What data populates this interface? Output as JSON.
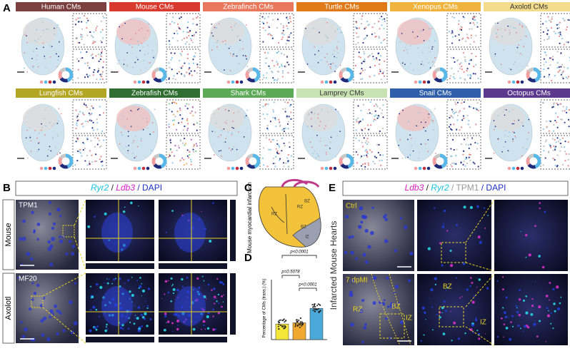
{
  "panels": {
    "A": {
      "label": "A",
      "tiles": [
        {
          "title": "Human CMs",
          "color": "#7b3f3f",
          "text_color": "#ffffff"
        },
        {
          "title": "Mouse CMs",
          "color": "#d93a2e",
          "text_color": "#ffffff"
        },
        {
          "title": "Zebrafinch CMs",
          "color": "#e8775c",
          "text_color": "#ffffff"
        },
        {
          "title": "Turtle CMs",
          "color": "#e07a18",
          "text_color": "#ffffff"
        },
        {
          "title": "Xenopus CMs",
          "color": "#f0b43e",
          "text_color": "#ffffff"
        },
        {
          "title": "Axolotl CMs",
          "color": "#f3dc8c",
          "text_color": "#333333"
        },
        {
          "title": "Lungfish CMs",
          "color": "#b3a624",
          "text_color": "#ffffff"
        },
        {
          "title": "Zebrafish CMs",
          "color": "#2f6d30",
          "text_color": "#ffffff"
        },
        {
          "title": "Shark CMs",
          "color": "#5caa57",
          "text_color": "#ffffff"
        },
        {
          "title": "Lamprey CMs",
          "color": "#c8e2b2",
          "text_color": "#333333"
        },
        {
          "title": "Snail CMs",
          "color": "#2e5fa8",
          "text_color": "#ffffff"
        },
        {
          "title": "Octopus CMs",
          "color": "#5b3a8e",
          "text_color": "#ffffff"
        }
      ]
    },
    "B": {
      "label": "B",
      "header": [
        {
          "text": "Ryr2",
          "color": "#19c2e0",
          "italic": true
        },
        {
          "text": " / ",
          "color": "#222222",
          "italic": false
        },
        {
          "text": "Ldb3",
          "color": "#d81cc4",
          "italic": true
        },
        {
          "text": " / DAPI",
          "color": "#1e2fc4",
          "italic": false
        }
      ],
      "rows": [
        {
          "species": "Mouse",
          "stain": "TPM1"
        },
        {
          "species": "Axolotl",
          "stain": "MF20"
        }
      ]
    },
    "C": {
      "label": "C",
      "title": "Mouse myocardial infarction",
      "zones": [
        "RZ",
        "RZ",
        "BZ",
        "BZ",
        "IZ"
      ]
    },
    "D": {
      "label": "D",
      "type": "bar",
      "y_label": "Percentage of CMs (trans.) (%)",
      "values": [
        13,
        14,
        26
      ],
      "colors": [
        "#f5e63a",
        "#f0a92e",
        "#4ba9d9"
      ],
      "ylim": [
        0,
        50
      ],
      "comparisons": [
        "p<0.0001",
        "p=0.5078",
        "p<0.0001"
      ]
    },
    "E": {
      "label": "E",
      "header": [
        {
          "text": "Ldb3",
          "color": "#d81cc4",
          "italic": true
        },
        {
          "text": " / ",
          "color": "#222222",
          "italic": false
        },
        {
          "text": "Ryr2",
          "color": "#19c2e0",
          "italic": true
        },
        {
          "text": " / TPM1",
          "color": "#999999",
          "italic": false
        },
        {
          "text": " / DAPI",
          "color": "#1e2fc4",
          "italic": false
        }
      ],
      "side_label": "Infarcted Mouse Hearts",
      "conditions": [
        "Ctrl",
        "7 dpMI"
      ],
      "zones": [
        "RZ",
        "BZ",
        "IZ",
        "BZ",
        "IZ"
      ]
    }
  }
}
